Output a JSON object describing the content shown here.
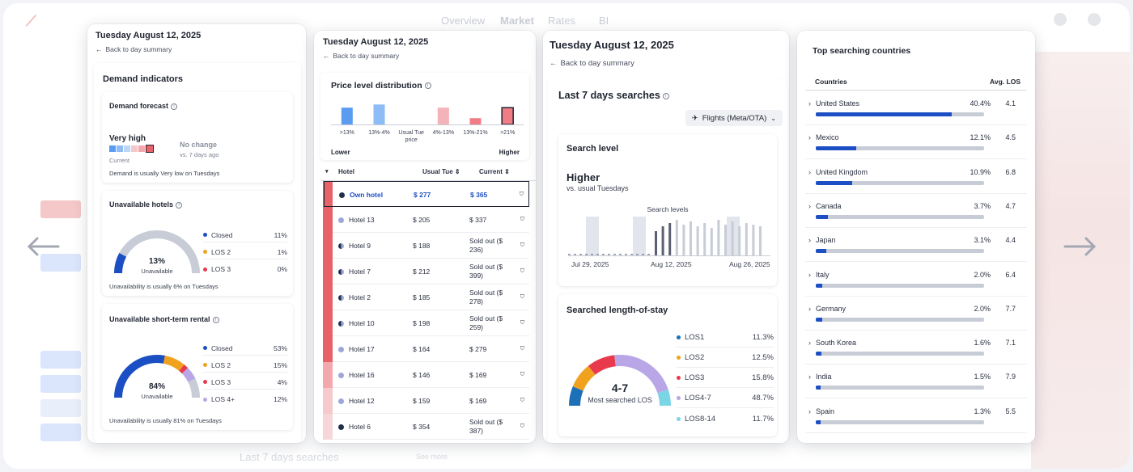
{
  "backdrop": {
    "nav": [
      "Overview",
      "Market",
      "Rates",
      "BI"
    ],
    "bottom_title": "Last 7 days searches",
    "see_more": "See more"
  },
  "panel1": {
    "date": "Tuesday August 12, 2025",
    "back": "Back to day summary",
    "title": "Demand indicators",
    "forecast": {
      "title": "Demand forecast",
      "level": "Very high",
      "current": "Current",
      "change": "No change",
      "change_sub": "vs. 7 days ago",
      "note": "Demand is usually Very low on Tuesdays"
    },
    "unavailable": {
      "title": "Unavailable hotels",
      "value": "13%",
      "value_label": "Unavailable",
      "legend": [
        {
          "label": "Closed",
          "value": "11%",
          "color": "#1d4fc4"
        },
        {
          "label": "LOS 2",
          "value": "1%",
          "color": "#f0a21f"
        },
        {
          "label": "LOS 3",
          "value": "0%",
          "color": "#e83a4c"
        }
      ],
      "note": "Unavailability is usually 6% on Tuesdays"
    },
    "str": {
      "title": "Unavailable short-term rental",
      "value": "84%",
      "value_label": "Unavailable",
      "legend": [
        {
          "label": "Closed",
          "value": "53%",
          "color": "#1d4fc4"
        },
        {
          "label": "LOS 2",
          "value": "15%",
          "color": "#f0a21f"
        },
        {
          "label": "LOS 3",
          "value": "4%",
          "color": "#e83a4c"
        },
        {
          "label": "LOS 4+",
          "value": "12%",
          "color": "#b9a6e6"
        }
      ],
      "note": "Unavailability is usually 81% on Tuesdays"
    }
  },
  "panel2": {
    "date": "Tuesday August 12, 2025",
    "back": "Back to day summary",
    "title": "Price level distribution",
    "bins": [
      {
        "label": ">13%",
        "value": 0.8,
        "color": "#5a9cf0"
      },
      {
        "label": "13%-4%",
        "value": 0.95,
        "color": "#8dbcf6"
      },
      {
        "label": "Usual Tue price",
        "value": 0,
        "color": "#cccccc"
      },
      {
        "label": "4%-13%",
        "value": 0.8,
        "color": "#f4b3b8"
      },
      {
        "label": "13%-21%",
        "value": 0.3,
        "color": "#f07c86"
      },
      {
        "label": ">21%",
        "value": 0.8,
        "color": "#f07c86"
      }
    ],
    "lower": "Lower",
    "higher": "Higher",
    "columns": [
      "Hotel",
      "Usual Tue",
      "Current"
    ],
    "rows": [
      {
        "name": "Own hotel",
        "usual": "$ 277",
        "current": "$ 365",
        "heat": "#e8626a",
        "dot": "#1f2f4a",
        "own": true
      },
      {
        "name": "Hotel 13",
        "usual": "$ 205",
        "current": "$ 337",
        "heat": "#e8626a",
        "dot": "#9da6d8"
      },
      {
        "name": "Hotel 9",
        "usual": "$ 188",
        "current": "Sold out ($ 236)",
        "heat": "#e8626a",
        "dot": "half"
      },
      {
        "name": "Hotel 7",
        "usual": "$ 212",
        "current": "Sold out ($ 399)",
        "heat": "#e8626a",
        "dot": "half"
      },
      {
        "name": "Hotel 2",
        "usual": "$ 185",
        "current": "Sold out ($ 278)",
        "heat": "#e8626a",
        "dot": "half"
      },
      {
        "name": "Hotel 10",
        "usual": "$ 198",
        "current": "Sold out ($ 259)",
        "heat": "#e8626a",
        "dot": "half"
      },
      {
        "name": "Hotel 17",
        "usual": "$ 164",
        "current": "$ 279",
        "heat": "#e8626a",
        "dot": "#9da6d8"
      },
      {
        "name": "Hotel 16",
        "usual": "$ 146",
        "current": "$ 169",
        "heat": "#f2a8ad",
        "dot": "#9da6d8"
      },
      {
        "name": "Hotel 12",
        "usual": "$ 159",
        "current": "$ 169",
        "heat": "#f6c9cc",
        "dot": "#9da6d8"
      },
      {
        "name": "Hotel 6",
        "usual": "$ 354",
        "current": "Sold out ($ 387)",
        "heat": "#f6d6d8",
        "dot": "#1f2f4a"
      }
    ]
  },
  "panel3": {
    "date": "Tuesday August 12, 2025",
    "back": "Back to day summary",
    "title": "Last 7 days searches",
    "source": "Flights (Meta/OTA)",
    "search_level": {
      "title": "Search level",
      "level": "Higher",
      "sub": "vs. usual Tuesdays",
      "chart_title": "Search levels",
      "dates": [
        "Jul 29, 2025",
        "Aug 12, 2025",
        "Aug 26, 2025"
      ]
    },
    "los": {
      "title": "Searched length-of-stay",
      "value": "4-7",
      "value_label": "Most searched LOS",
      "legend": [
        {
          "label": "LOS1",
          "value": "11.3%",
          "color": "#1d6fb8"
        },
        {
          "label": "LOS2",
          "value": "12.5%",
          "color": "#f0a21f"
        },
        {
          "label": "LOS3",
          "value": "15.8%",
          "color": "#e83a4c"
        },
        {
          "label": "LOS4-7",
          "value": "48.7%",
          "color": "#b9a6e6"
        },
        {
          "label": "LOS8-14",
          "value": "11.7%",
          "color": "#7ad6e4"
        }
      ]
    }
  },
  "panel4": {
    "title": "Top searching countries",
    "col_country": "Countries",
    "col_los": "Avg. LOS",
    "rows": [
      {
        "name": "United States",
        "pct": "40.4%",
        "share": 40.4,
        "los": "4.1"
      },
      {
        "name": "Mexico",
        "pct": "12.1%",
        "share": 12.1,
        "los": "4.5"
      },
      {
        "name": "United Kingdom",
        "pct": "10.9%",
        "share": 10.9,
        "los": "6.8"
      },
      {
        "name": "Canada",
        "pct": "3.7%",
        "share": 3.7,
        "los": "4.7"
      },
      {
        "name": "Japan",
        "pct": "3.1%",
        "share": 3.1,
        "los": "4.4"
      },
      {
        "name": "Italy",
        "pct": "2.0%",
        "share": 2.0,
        "los": "6.4"
      },
      {
        "name": "Germany",
        "pct": "2.0%",
        "share": 2.0,
        "los": "7.7"
      },
      {
        "name": "South Korea",
        "pct": "1.6%",
        "share": 1.6,
        "los": "7.1"
      },
      {
        "name": "India",
        "pct": "1.5%",
        "share": 1.5,
        "los": "7.9"
      },
      {
        "name": "Spain",
        "pct": "1.3%",
        "share": 1.3,
        "los": "5.5"
      }
    ]
  }
}
